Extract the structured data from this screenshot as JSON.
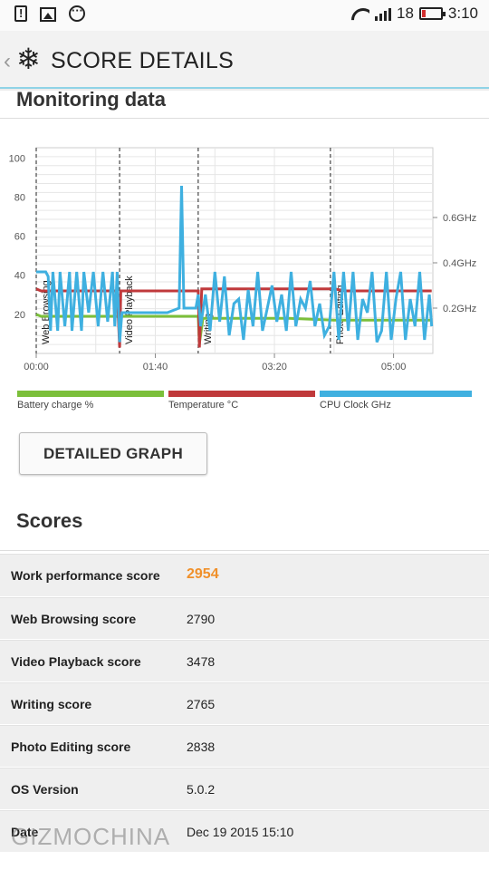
{
  "status_bar": {
    "battery_level": "18",
    "time": "3:10",
    "icons": [
      "alert-icon",
      "gallery-icon",
      "more-icon",
      "wifi-icon",
      "signal-icon",
      "battery-icon"
    ]
  },
  "app_bar": {
    "title": "SCORE DETAILS",
    "back_icon": "‹",
    "logo_icon": "❄"
  },
  "monitoring": {
    "title": "Monitoring data"
  },
  "chart_data": {
    "type": "line",
    "x_ticks": [
      "00:00",
      "01:40",
      "03:20",
      "05:00"
    ],
    "y_ticks_left": [
      "20",
      "40",
      "60",
      "80",
      "100"
    ],
    "y_ticks_right": [
      "0.2GHz",
      "0.4GHz",
      "0.6GHz"
    ],
    "ylim_left": [
      0,
      100
    ],
    "ylim_right": [
      0,
      0.6
    ],
    "grid": true,
    "legend_position": "bottom",
    "phase_markers": [
      {
        "label": "Web Browsing",
        "time": "00:00"
      },
      {
        "label": "Video Playback",
        "time": "01:10"
      },
      {
        "label": "Writing",
        "time": "02:16"
      },
      {
        "label": "Photo Editing",
        "time": "04:10"
      }
    ],
    "series": [
      {
        "name": "Battery charge %",
        "color": "#7bbf3a",
        "x_minutes": [
          0,
          4,
          68,
          70,
          71,
          136,
          137,
          140,
          200,
          212,
          250,
          300,
          332
        ],
        "y": [
          20,
          19,
          19,
          18,
          19,
          19,
          5,
          18,
          18,
          18,
          17,
          17,
          17
        ]
      },
      {
        "name": "Temperature °C",
        "color": "#c0393b",
        "x_minutes": [
          0,
          4,
          68,
          70,
          71,
          136,
          137,
          139,
          250,
          260,
          332
        ],
        "y": [
          33,
          32,
          32,
          3,
          32,
          32,
          3,
          33,
          33,
          32,
          32
        ]
      },
      {
        "name": "CPU Clock GHz",
        "color": "#3fb0e0",
        "x_minutes": [
          0,
          8,
          10,
          12,
          14,
          18,
          20,
          24,
          28,
          30,
          34,
          38,
          40,
          44,
          48,
          52,
          56,
          60,
          64,
          66,
          68,
          70,
          72,
          76,
          80,
          84,
          88,
          92,
          96,
          100,
          110,
          120,
          122,
          124,
          128,
          132,
          134,
          136,
          138,
          142,
          146,
          150,
          154,
          158,
          162,
          166,
          170,
          174,
          178,
          182,
          186,
          190,
          194,
          198,
          202,
          206,
          210,
          214,
          218,
          222,
          226,
          230,
          234,
          238,
          242,
          246,
          250,
          254,
          258,
          262,
          266,
          270,
          274,
          278,
          282,
          286,
          290,
          294,
          298,
          302,
          306,
          310,
          314,
          318,
          322,
          326,
          330,
          332
        ],
        "y": [
          0.36,
          0.36,
          0.34,
          0.1,
          0.36,
          0.1,
          0.36,
          0.12,
          0.36,
          0.1,
          0.36,
          0.1,
          0.36,
          0.18,
          0.36,
          0.12,
          0.36,
          0.14,
          0.36,
          0.12,
          0.36,
          0.05,
          0.18,
          0.18,
          0.18,
          0.18,
          0.18,
          0.18,
          0.18,
          0.18,
          0.18,
          0.2,
          0.74,
          0.2,
          0.2,
          0.2,
          0.2,
          0.26,
          0.12,
          0.26,
          0.1,
          0.36,
          0.14,
          0.34,
          0.08,
          0.22,
          0.24,
          0.06,
          0.28,
          0.12,
          0.36,
          0.1,
          0.2,
          0.3,
          0.14,
          0.26,
          0.1,
          0.36,
          0.12,
          0.24,
          0.2,
          0.32,
          0.12,
          0.22,
          0.08,
          0.12,
          0.36,
          0.06,
          0.36,
          0.1,
          0.36,
          0.06,
          0.24,
          0.18,
          0.36,
          0.05,
          0.1,
          0.36,
          0.06,
          0.24,
          0.36,
          0.06,
          0.24,
          0.12,
          0.36,
          0.06,
          0.26,
          0.12
        ]
      }
    ]
  },
  "legend": [
    {
      "label": "Battery charge %",
      "color": "#7bbf3a"
    },
    {
      "label": "Temperature °C",
      "color": "#c0393b"
    },
    {
      "label": "CPU Clock GHz",
      "color": "#3fb0e0"
    }
  ],
  "detailed_graph_button": "DETAILED GRAPH",
  "scores": {
    "title": "Scores",
    "rows": [
      {
        "label": "Work performance score",
        "value": "2954"
      },
      {
        "label": "Web Browsing score",
        "value": "2790"
      },
      {
        "label": "Video Playback score",
        "value": "3478"
      },
      {
        "label": "Writing score",
        "value": "2765"
      },
      {
        "label": "Photo Editing score",
        "value": "2838"
      },
      {
        "label": "OS Version",
        "value": "5.0.2"
      },
      {
        "label": "Date",
        "value": "Dec 19 2015 15:10"
      }
    ]
  },
  "watermark": "GIZMOCHINA"
}
